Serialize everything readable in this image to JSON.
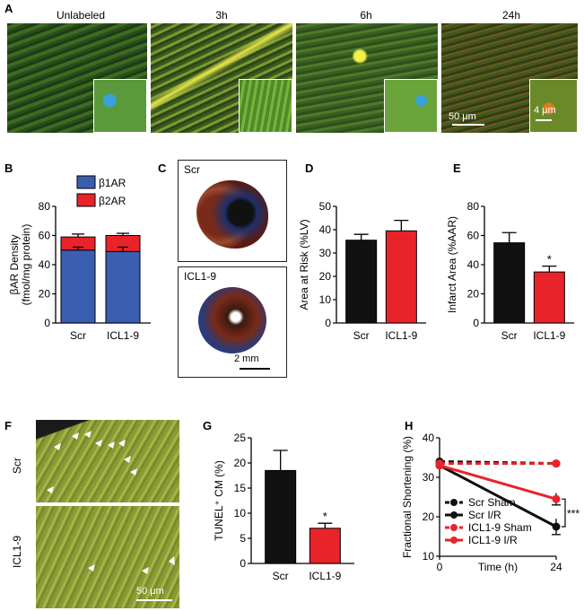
{
  "panels": {
    "A": "A",
    "B": "B",
    "C": "C",
    "D": "D",
    "E": "E",
    "F": "F",
    "G": "G",
    "H": "H"
  },
  "panel_a": {
    "titles": [
      "Unlabeled",
      "3h",
      "6h",
      "24h"
    ],
    "scale_main": "50 μm",
    "scale_inset": "4 μm"
  },
  "panel_c": {
    "scr": "Scr",
    "icl": "ICL1-9",
    "scale": "2 mm"
  },
  "panel_f": {
    "scr": "Scr",
    "icl": "ICL1-9",
    "scale": "50 μm"
  },
  "colors": {
    "b1": "#3a5fb0",
    "b2": "#e8232a",
    "black": "#111111",
    "red": "#e8232a"
  },
  "chart_data": [
    {
      "id": "B",
      "type": "bar",
      "stacked": true,
      "categories": [
        "Scr",
        "ICL1-9"
      ],
      "series": [
        {
          "name": "β1AR",
          "values": [
            50,
            49
          ]
        },
        {
          "name": "β2AR",
          "values": [
            9,
            11
          ]
        }
      ],
      "totals_error": [
        2,
        1.5
      ],
      "inner_error": [
        2,
        3
      ],
      "ylabel_line1": "βAR Density",
      "ylabel_line2": "(fmol/mg protein)",
      "ylim": [
        0,
        80
      ],
      "yticks": [
        "0",
        "20",
        "40",
        "60",
        "80"
      ]
    },
    {
      "id": "D",
      "type": "bar",
      "categories": [
        "Scr",
        "ICL1-9"
      ],
      "values": [
        35.5,
        39.5
      ],
      "errors": [
        2.5,
        4.5
      ],
      "ylabel": "Area at Risk (%LV)",
      "ylim": [
        0,
        50
      ],
      "yticks": [
        "0",
        "10",
        "20",
        "30",
        "40",
        "50"
      ]
    },
    {
      "id": "E",
      "type": "bar",
      "categories": [
        "Scr",
        "ICL1-9"
      ],
      "values": [
        55,
        35
      ],
      "errors": [
        7,
        4
      ],
      "sig": "*",
      "ylabel": "Infarct Area (%AAR)",
      "ylim": [
        0,
        80
      ],
      "yticks": [
        "0",
        "20",
        "40",
        "60",
        "80"
      ]
    },
    {
      "id": "G",
      "type": "bar",
      "categories": [
        "Scr",
        "ICL1-9"
      ],
      "values": [
        18.5,
        7
      ],
      "errors": [
        4,
        1
      ],
      "sig": "*",
      "ylabel": "TUNEL⁺ CM (%)",
      "ylim": [
        0,
        25
      ],
      "yticks": [
        "0",
        "5",
        "10",
        "15",
        "20",
        "25"
      ]
    },
    {
      "id": "H",
      "type": "line",
      "x": [
        0,
        24
      ],
      "xlabel": "Time (h)",
      "xticks": [
        "0",
        "24"
      ],
      "ylabel": "Fractional Shortening (%)",
      "ylim": [
        10,
        40
      ],
      "yticks": [
        "10",
        "20",
        "30",
        "40"
      ],
      "sig": "***",
      "series": [
        {
          "name": "Scr Sham",
          "values": [
            34,
            33.5
          ],
          "color": "#111111",
          "dashed": true
        },
        {
          "name": "Scr I/R",
          "values": [
            33,
            17.5
          ],
          "color": "#111111",
          "dashed": false,
          "err": 2
        },
        {
          "name": "ICL1-9 Sham",
          "values": [
            33.5,
            33.5
          ],
          "color": "#e8232a",
          "dashed": true
        },
        {
          "name": "ICL1-9 I/R",
          "values": [
            33,
            24.5
          ],
          "color": "#e8232a",
          "dashed": false,
          "err": 1.5
        }
      ]
    }
  ]
}
